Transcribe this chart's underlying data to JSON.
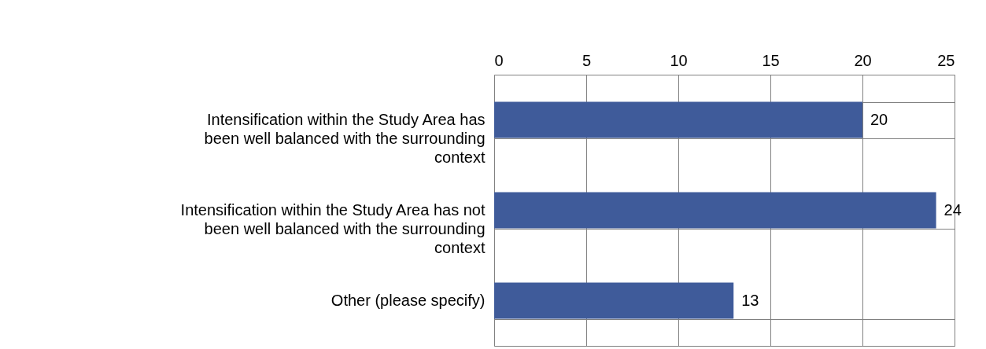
{
  "chart_data": {
    "type": "bar",
    "orientation": "horizontal",
    "categories": [
      "Intensification within the Study Area has been well balanced with the surrounding context",
      "Intensification within the Study Area has not been well balanced with the surrounding context",
      "Other (please specify)"
    ],
    "values": [
      20,
      24,
      13
    ],
    "color": "#3f5b9a",
    "xlim": [
      0,
      25
    ],
    "xticks": [
      0,
      5,
      10,
      15,
      20,
      25
    ],
    "grid": true,
    "data_labels": true
  }
}
